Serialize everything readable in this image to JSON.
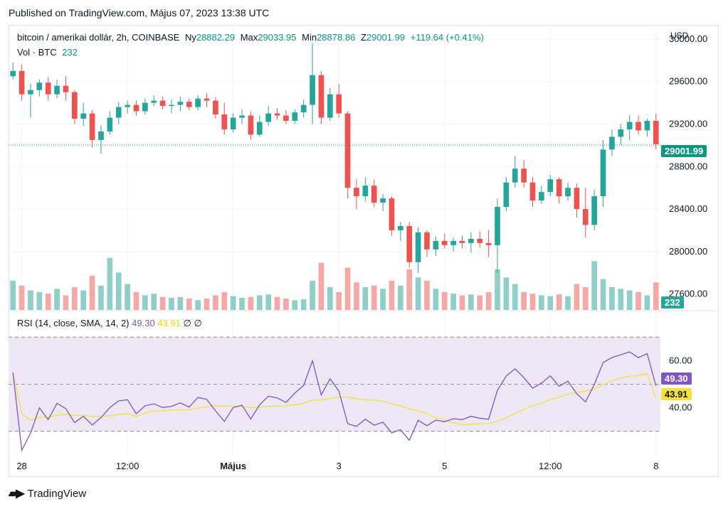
{
  "published": "Published on TradingView.com, Május 07, 2023 13:38 UTC",
  "footer_brand": "TradingView",
  "legend": {
    "symbol": "bitcoin / amerikai dollár, 2h, COINBASE",
    "open_label": "Ny",
    "open": "28882.29",
    "high_label": "Max",
    "high": "29033.95",
    "low_label": "Min",
    "low": "28878.86",
    "close_label": "Z",
    "close": "29001.99",
    "change": "+119.64 (+0.41%)",
    "vol_label": "Vol · BTC",
    "vol": "232"
  },
  "rsi_legend": {
    "label": "RSI (14, close, SMA, 14, 2)",
    "rsi": "49.30",
    "sma": "43.91",
    "extra1": "∅",
    "extra2": "∅"
  },
  "currency": "USD",
  "badges": {
    "price": "29001.99",
    "volume": "232",
    "rsi": "49.30",
    "rsi_sma": "43.91"
  },
  "colors": {
    "up": "#26a69a",
    "down": "#ef5350",
    "up_vol": "#8fcfc7",
    "down_vol": "#f5a8a6",
    "rsi_line": "#7e57c2",
    "rsi_sma": "#f5e040",
    "rsi_band": "#ede7f6",
    "price_line": "#089981"
  },
  "chart_data": {
    "type": "candlestick",
    "price_ticks": [
      "30000.00",
      "29600.00",
      "29200.00",
      "28800.00",
      "28400.00",
      "28000.00",
      "27600.00"
    ],
    "price_tick_values": [
      30000,
      29600,
      29200,
      28800,
      28400,
      28000,
      27600
    ],
    "price_range": [
      27450,
      30100
    ],
    "rsi_ticks": [
      "60.00",
      "40.00"
    ],
    "rsi_tick_values": [
      60,
      40
    ],
    "rsi_range": [
      20,
      80
    ],
    "rsi_bands": [
      70,
      50,
      30
    ],
    "x_labels": [
      "28",
      "12:00",
      "Május",
      "3",
      "5",
      "12:00",
      "8"
    ],
    "x_label_index": [
      1.5,
      13.5,
      25.5,
      37.5,
      49.5,
      61.5,
      73.5
    ],
    "candles": [
      [
        29650,
        29780,
        29620,
        29700,
        180
      ],
      [
        29700,
        29760,
        29420,
        29480,
        150
      ],
      [
        29480,
        29580,
        29260,
        29520,
        120
      ],
      [
        29520,
        29620,
        29460,
        29590,
        110
      ],
      [
        29590,
        29640,
        29420,
        29480,
        100
      ],
      [
        29480,
        29620,
        29440,
        29560,
        130
      ],
      [
        29560,
        29650,
        29420,
        29500,
        90
      ],
      [
        29500,
        29520,
        29200,
        29250,
        140
      ],
      [
        29250,
        29400,
        29180,
        29300,
        120
      ],
      [
        29300,
        29330,
        28980,
        29050,
        210
      ],
      [
        29050,
        29190,
        28920,
        29130,
        150
      ],
      [
        29130,
        29320,
        29100,
        29260,
        320
      ],
      [
        29260,
        29410,
        29200,
        29360,
        230
      ],
      [
        29360,
        29420,
        29300,
        29380,
        160
      ],
      [
        29380,
        29420,
        29280,
        29320,
        110
      ],
      [
        29320,
        29440,
        29290,
        29400,
        90
      ],
      [
        29400,
        29470,
        29370,
        29420,
        100
      ],
      [
        29420,
        29460,
        29340,
        29370,
        80
      ],
      [
        29370,
        29430,
        29300,
        29380,
        75
      ],
      [
        29380,
        29460,
        29320,
        29410,
        80
      ],
      [
        29410,
        29440,
        29330,
        29360,
        70
      ],
      [
        29360,
        29470,
        29330,
        29440,
        60
      ],
      [
        29440,
        29490,
        29360,
        29420,
        70
      ],
      [
        29420,
        29450,
        29250,
        29290,
        90
      ],
      [
        29290,
        29400,
        29100,
        29150,
        110
      ],
      [
        29150,
        29300,
        29120,
        29260,
        85
      ],
      [
        29260,
        29340,
        29200,
        29280,
        75
      ],
      [
        29280,
        29320,
        29050,
        29100,
        80
      ],
      [
        29100,
        29280,
        29080,
        29220,
        90
      ],
      [
        29220,
        29370,
        29180,
        29300,
        95
      ],
      [
        29300,
        29350,
        29240,
        29280,
        80
      ],
      [
        29280,
        29330,
        29200,
        29230,
        70
      ],
      [
        29230,
        29340,
        29200,
        29310,
        60
      ],
      [
        29310,
        29430,
        29260,
        29380,
        65
      ],
      [
        29380,
        29960,
        29200,
        29660,
        180
      ],
      [
        29660,
        29700,
        29200,
        29260,
        290
      ],
      [
        29260,
        29540,
        29230,
        29480,
        140
      ],
      [
        29480,
        29580,
        29260,
        29300,
        110
      ]
    ]
  }
}
